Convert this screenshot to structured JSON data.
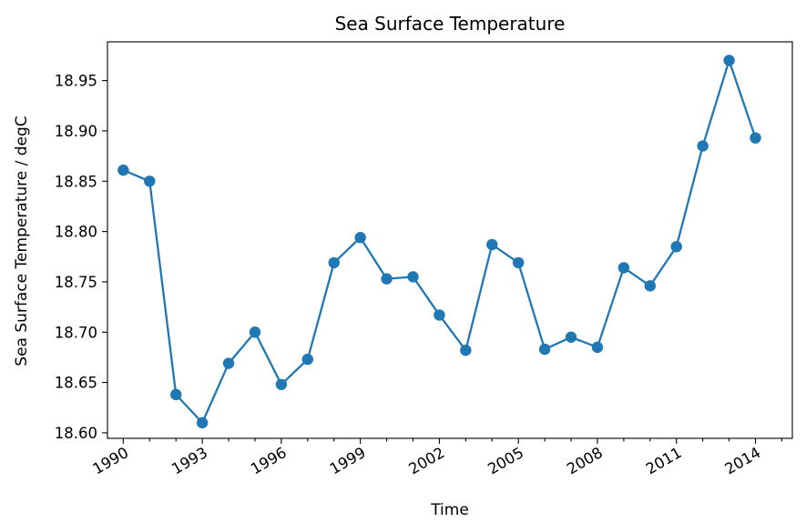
{
  "chart_data": {
    "type": "line",
    "title": "Sea Surface Temperature",
    "xlabel": "Time",
    "ylabel": "Sea Surface Temperature / degC",
    "x": [
      1990,
      1991,
      1992,
      1993,
      1994,
      1995,
      1996,
      1997,
      1998,
      1999,
      2000,
      2001,
      2002,
      2003,
      2004,
      2005,
      2006,
      2007,
      2008,
      2009,
      2010,
      2011,
      2012,
      2013,
      2014
    ],
    "series": [
      {
        "color": "#1f77b4",
        "marker": "circle",
        "values": [
          18.861,
          18.85,
          18.638,
          18.61,
          18.669,
          18.7,
          18.648,
          18.673,
          18.769,
          18.794,
          18.753,
          18.755,
          18.717,
          18.682,
          18.787,
          18.769,
          18.683,
          18.695,
          18.685,
          18.764,
          18.746,
          18.785,
          18.885,
          18.97,
          18.893
        ]
      }
    ],
    "xlim": [
      1989.4,
      2015.4
    ],
    "ylim": [
      18.5945,
      18.9885
    ],
    "yticks": [
      "18.60",
      "18.65",
      "18.70",
      "18.75",
      "18.80",
      "18.85",
      "18.90",
      "18.95"
    ],
    "xticks": [
      "1990",
      "1993",
      "1996",
      "1999",
      "2002",
      "2005",
      "2008",
      "2011",
      "2014"
    ],
    "grid": false
  }
}
